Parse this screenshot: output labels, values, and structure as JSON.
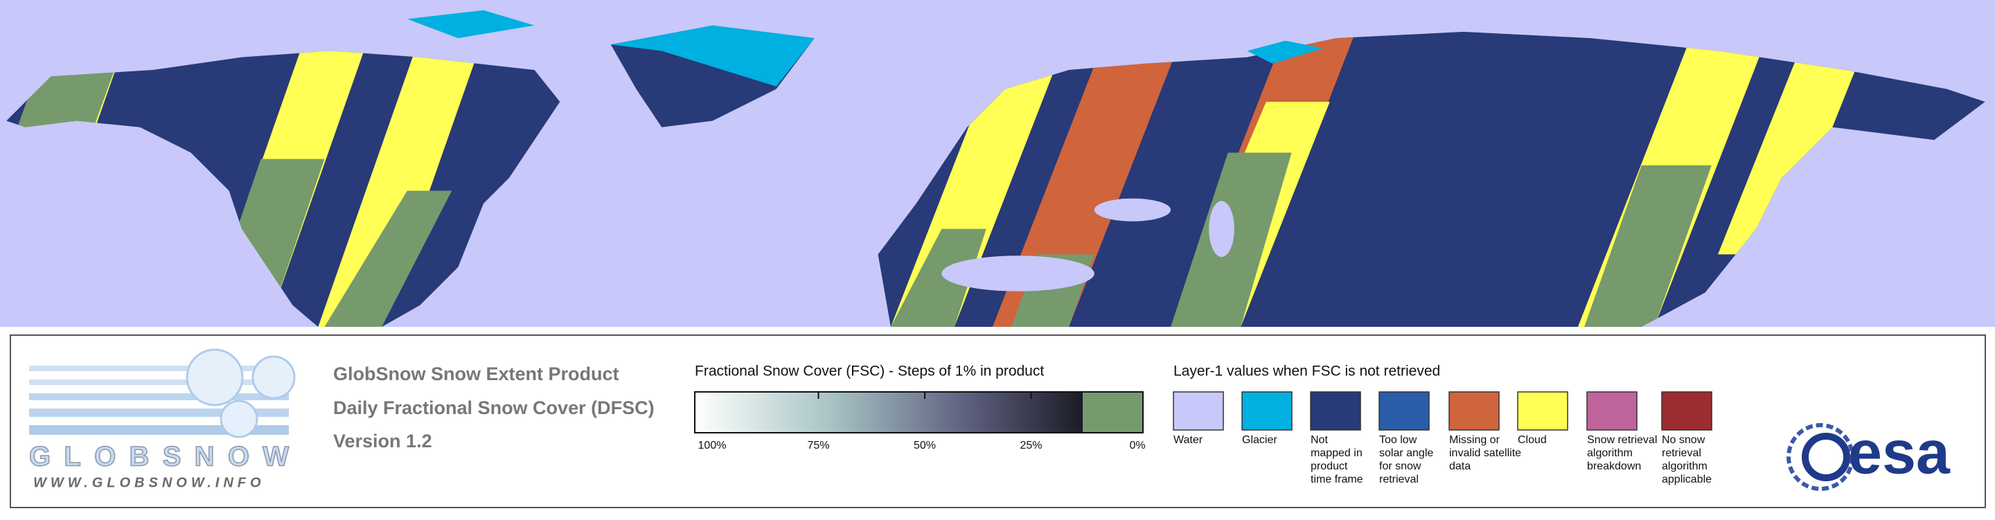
{
  "header": {
    "title": "GlobSnow Snow Extent Product",
    "subtitle": "Daily Fractional Snow Cover (DFSC)",
    "version": "Version 1.2"
  },
  "logo": {
    "name": "GLOBSNOW",
    "url": "WWW.GLOBSNOW.INFO"
  },
  "colorbar": {
    "title": "Fractional Snow Cover (FSC) - Steps of 1% in product",
    "ticks": [
      {
        "value": 100,
        "label": "100%"
      },
      {
        "value": 75,
        "label": "75%"
      },
      {
        "value": 50,
        "label": "50%"
      },
      {
        "value": 25,
        "label": "25%"
      },
      {
        "value": 0,
        "label": "0%"
      }
    ]
  },
  "layer1": {
    "title": "Layer-1 values when FSC is not retrieved",
    "items": [
      {
        "label": [
          "Water"
        ],
        "color": "#c8c8fa"
      },
      {
        "label": [
          "Glacier"
        ],
        "color": "#00b0e0"
      },
      {
        "label": [
          "Not",
          "mapped in",
          "product",
          "time frame"
        ],
        "color": "#283a78"
      },
      {
        "label": [
          "Too low",
          "solar angle",
          "for snow",
          "retrieval"
        ],
        "color": "#2a5ca8"
      },
      {
        "label": [
          "Missing or",
          "invalid satellite",
          "data"
        ],
        "color": "#d0643c"
      },
      {
        "label": [
          "Cloud"
        ],
        "color": "#ffff55"
      },
      {
        "label": [
          "Snow retrieval",
          "algorithm",
          "breakdown"
        ],
        "color": "#c0649c"
      },
      {
        "label": [
          "No snow",
          "retrieval",
          "algorithm",
          "applicable"
        ],
        "color": "#9c2c30"
      }
    ]
  },
  "agency": "esa"
}
